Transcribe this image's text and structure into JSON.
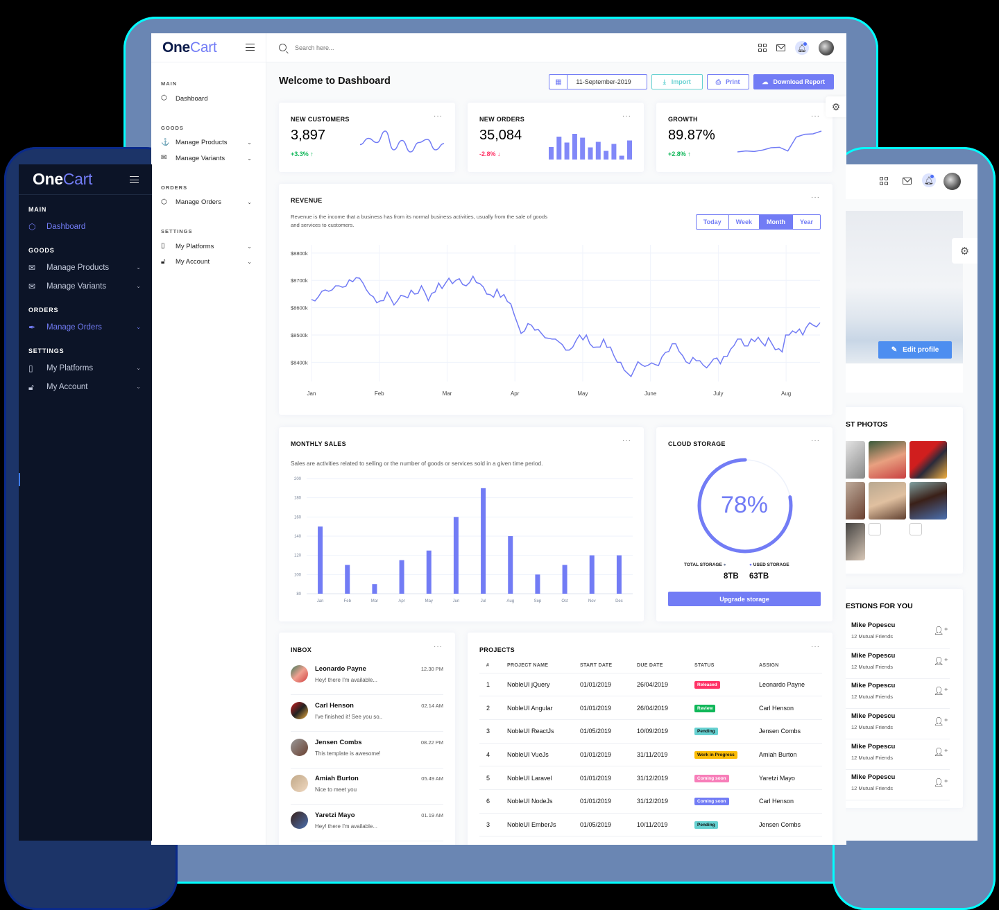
{
  "app": {
    "brand_one": "One",
    "brand_cart": "Cart"
  },
  "topbar": {
    "search_placeholder": "Search here..."
  },
  "sidebar": {
    "sections": [
      {
        "label": "MAIN",
        "items": [
          {
            "label": "Dashboard",
            "icon": "box-icon"
          }
        ]
      },
      {
        "label": "GOODS",
        "items": [
          {
            "label": "Manage Products",
            "icon": "anchor-icon"
          },
          {
            "label": "Manage Variants",
            "icon": "mail-icon"
          }
        ]
      },
      {
        "label": "ORDERS",
        "items": [
          {
            "label": "Manage Orders",
            "icon": "box-icon"
          }
        ]
      },
      {
        "label": "SETTINGS",
        "items": [
          {
            "label": "My Platforms",
            "icon": "book-icon"
          },
          {
            "label": "My Account",
            "icon": "unlock-icon"
          }
        ]
      }
    ]
  },
  "dark_sidebar": {
    "sections": [
      {
        "label": "MAIN",
        "items": [
          {
            "label": "Dashboard",
            "icon": "box-icon"
          }
        ]
      },
      {
        "label": "GOODS",
        "items": [
          {
            "label": "Manage Products",
            "icon": "mail-icon"
          },
          {
            "label": "Manage Variants",
            "icon": "mail-icon"
          }
        ]
      },
      {
        "label": "ORDERS",
        "items": [
          {
            "label": "Manage Orders",
            "icon": "feather-icon"
          }
        ]
      },
      {
        "label": "SETTINGS",
        "items": [
          {
            "label": "My Platforms",
            "icon": "book-icon"
          },
          {
            "label": "My Account",
            "icon": "unlock-icon"
          }
        ]
      }
    ]
  },
  "header": {
    "title": "Welcome to Dashboard",
    "date": "11-September-2019",
    "import_label": "Import",
    "print_label": "Print",
    "download_label": "Download Report"
  },
  "stats": [
    {
      "title": "NEW CUSTOMERS",
      "value": "3,897",
      "delta": "+3.3%",
      "dir": "up"
    },
    {
      "title": "NEW ORDERS",
      "value": "35,084",
      "delta": "-2.8%",
      "dir": "down"
    },
    {
      "title": "GROWTH",
      "value": "89.87%",
      "delta": "+2.8%",
      "dir": "up"
    }
  ],
  "revenue": {
    "title": "REVENUE",
    "desc1": "Revenue is the income that a business has from its normal business activities, usually from the sale of goods",
    "desc2": "and services to customers.",
    "tabs": [
      "Today",
      "Week",
      "Month",
      "Year"
    ],
    "active_tab": "Month"
  },
  "monthly_sales": {
    "title": "MONTHLY SALES",
    "desc": "Sales are activities related to selling or the number of goods or services sold in a given time period."
  },
  "cloud": {
    "title": "CLOUD STORAGE",
    "percent": "78%",
    "total_label": "TOTAL STORAGE",
    "used_label": "USED STORAGE",
    "total_value": "8TB",
    "used_value": "63TB",
    "button": "Upgrade storage"
  },
  "inbox": {
    "title": "INBOX",
    "messages": [
      {
        "name": "Leonardo Payne",
        "text": "Hey! there I'm available...",
        "time": "12.30 PM"
      },
      {
        "name": "Carl Henson",
        "text": "I've finished it! See you so..",
        "time": "02.14 AM"
      },
      {
        "name": "Jensen Combs",
        "text": "This template is awesome!",
        "time": "08.22 PM"
      },
      {
        "name": "Amiah Burton",
        "text": "Nice to meet you",
        "time": "05.49 AM"
      },
      {
        "name": "Yaretzi Mayo",
        "text": "Hey! there I'm available...",
        "time": "01.19 AM"
      }
    ]
  },
  "projects": {
    "title": "PROJECTS",
    "columns": [
      "#",
      "PROJECT NAME",
      "START DATE",
      "DUE DATE",
      "STATUS",
      "ASSIGN"
    ],
    "rows": [
      {
        "n": "1",
        "name": "NobleUI jQuery",
        "start": "01/01/2019",
        "due": "26/04/2019",
        "status": "Released",
        "color": "#ff3366",
        "fg": "#fff",
        "assign": "Leonardo Payne"
      },
      {
        "n": "2",
        "name": "NobleUI Angular",
        "start": "01/01/2019",
        "due": "26/04/2019",
        "status": "Review",
        "color": "#10b759",
        "fg": "#fff",
        "assign": "Carl Henson"
      },
      {
        "n": "3",
        "name": "NobleUI ReactJs",
        "start": "01/05/2019",
        "due": "10/09/2019",
        "status": "Pending",
        "color": "#66d1d1",
        "fg": "#111",
        "assign": "Jensen Combs"
      },
      {
        "n": "4",
        "name": "NobleUI VueJs",
        "start": "01/01/2019",
        "due": "31/11/2019",
        "status": "Work in Progress",
        "color": "#fbbc06",
        "fg": "#111",
        "assign": "Amiah Burton"
      },
      {
        "n": "5",
        "name": "NobleUI Laravel",
        "start": "01/01/2019",
        "due": "31/12/2019",
        "status": "Coming soon",
        "color": "#f77eb9",
        "fg": "#fff",
        "assign": "Yaretzi Mayo"
      },
      {
        "n": "6",
        "name": "NobleUI NodeJs",
        "start": "01/01/2019",
        "due": "31/12/2019",
        "status": "Coming soon",
        "color": "#727cf5",
        "fg": "#fff",
        "assign": "Carl Henson"
      },
      {
        "n": "3",
        "name": "NobleUI EmberJs",
        "start": "01/05/2019",
        "due": "10/11/2019",
        "status": "Pending",
        "color": "#66d1d1",
        "fg": "#111",
        "assign": "Jensen Combs"
      }
    ]
  },
  "profile": {
    "edit_label": "Edit profile",
    "photos_title": "ST PHOTOS",
    "suggestions_title": "ESTIONS FOR YOU",
    "suggestions": [
      {
        "name": "Mike Popescu",
        "sub": "12 Mutual Friends"
      },
      {
        "name": "Mike Popescu",
        "sub": "12 Mutual Friends"
      },
      {
        "name": "Mike Popescu",
        "sub": "12 Mutual Friends"
      },
      {
        "name": "Mike Popescu",
        "sub": "12 Mutual Friends"
      },
      {
        "name": "Mike Popescu",
        "sub": "12 Mutual Friends"
      },
      {
        "name": "Mike Popescu",
        "sub": "12 Mutual Friends"
      }
    ]
  },
  "colors": {
    "accent": "#727cf5",
    "success": "#10b759",
    "danger": "#ff3366",
    "info": "#66d1d1",
    "dark_bg": "#0c1427"
  },
  "chart_data": [
    {
      "type": "line",
      "title": "REVENUE",
      "categories": [
        "Jan",
        "Feb",
        "Mar",
        "Apr",
        "May",
        "June",
        "July",
        "Aug"
      ],
      "yticks": [
        "$8400k",
        "$8500k",
        "$8600k",
        "$8700k",
        "$8800k"
      ],
      "ylim": [
        8330,
        8830
      ],
      "values": [
        8630,
        8625,
        8640,
        8660,
        8665,
        8660,
        8665,
        8680,
        8680,
        8675,
        8678,
        8702,
        8695,
        8710,
        8708,
        8690,
        8665,
        8648,
        8640,
        8618,
        8625,
        8626,
        8657,
        8635,
        8610,
        8625,
        8645,
        8642,
        8636,
        8664,
        8650,
        8652,
        8680,
        8656,
        8626,
        8652,
        8658,
        8690,
        8670,
        8690,
        8708,
        8688,
        8700,
        8706,
        8685,
        8680,
        8692,
        8715,
        8692,
        8688,
        8676,
        8650,
        8648,
        8638,
        8668,
        8638,
        8648,
        8623,
        8614,
        8575,
        8540,
        8506,
        8515,
        8542,
        8536,
        8518,
        8520,
        8505,
        8490,
        8488,
        8485,
        8485,
        8475,
        8465,
        8445,
        8445,
        8455,
        8480,
        8500,
        8482,
        8500,
        8468,
        8455,
        8456,
        8456,
        8485,
        8455,
        8456,
        8425,
        8400,
        8400,
        8372,
        8360,
        8348,
        8375,
        8402,
        8392,
        8385,
        8390,
        8398,
        8392,
        8388,
        8420,
        8436,
        8440,
        8468,
        8468,
        8440,
        8425,
        8402,
        8395,
        8418,
        8406,
        8406,
        8390,
        8380,
        8395,
        8412,
        8416,
        8395,
        8422,
        8422,
        8448,
        8462,
        8485,
        8485,
        8460,
        8460,
        8486,
        8476,
        8492,
        8474,
        8460,
        8490,
        8468,
        8446,
        8450,
        8438,
        8500,
        8500,
        8515,
        8508,
        8522,
        8500,
        8528,
        8545,
        8536,
        8530,
        8545
      ],
      "xlabel": "",
      "ylabel": "",
      "grid": true
    },
    {
      "type": "bar",
      "title": "MONTHLY SALES",
      "categories": [
        "Jan",
        "Feb",
        "Mar",
        "Apr",
        "May",
        "Jun",
        "Jul",
        "Aug",
        "Sep",
        "Oct",
        "Nov",
        "Dec"
      ],
      "values": [
        150,
        110,
        90,
        115,
        125,
        160,
        190,
        140,
        100,
        110,
        120,
        120
      ],
      "yticks": [
        80,
        100,
        120,
        140,
        160,
        180,
        200
      ],
      "ylim": [
        80,
        200
      ],
      "grid": true
    },
    {
      "type": "line",
      "title": "NEW CUSTOMERS sparkline",
      "values": [
        40,
        52,
        44,
        66,
        30,
        48,
        26,
        44,
        50,
        30,
        42
      ]
    },
    {
      "type": "bar",
      "title": "NEW ORDERS sparkline",
      "values": [
        36,
        66,
        49,
        74,
        63,
        35,
        51,
        25,
        45,
        11,
        55
      ]
    },
    {
      "type": "line",
      "title": "GROWTH sparkline",
      "values": [
        10,
        12,
        11,
        14,
        19,
        20,
        12,
        42,
        48,
        49,
        55
      ]
    },
    {
      "type": "pie",
      "title": "CLOUD STORAGE",
      "values": [
        78,
        22
      ],
      "labels": [
        "Used",
        "Free"
      ]
    }
  ]
}
